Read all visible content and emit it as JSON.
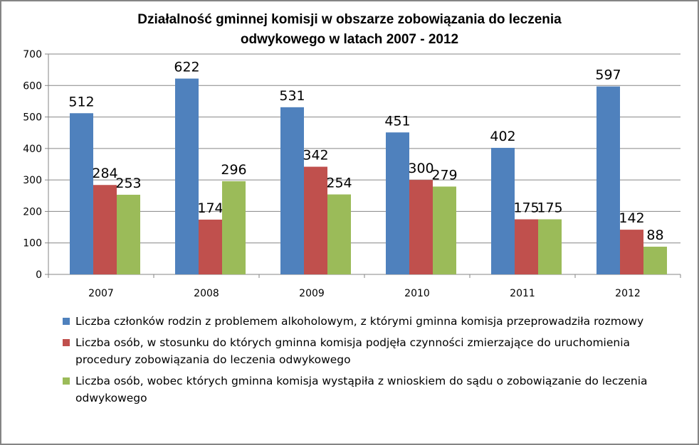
{
  "chart_data": {
    "type": "bar",
    "title_lines": [
      "Działalność gminnej komisji w obszarze zobowiązania do leczenia",
      "odwykowego w latach 2007 - 2012"
    ],
    "categories": [
      "2007",
      "2008",
      "2009",
      "2010",
      "2011",
      "2012"
    ],
    "ylim": [
      0,
      700
    ],
    "yticks": [
      0,
      100,
      200,
      300,
      400,
      500,
      600,
      700
    ],
    "grid": true,
    "legend_position": "bottom",
    "series": [
      {
        "name": "Liczba członków rodzin z problemem alkoholowym, z którymi gminna komisja przeprowadziła rozmowy",
        "color": "#4F81BD",
        "values": [
          512,
          622,
          531,
          451,
          402,
          597
        ]
      },
      {
        "name": "Liczba osób, w stosunku do których gminna komisja podjęła czynności zmierzające do uruchomienia procedury zobowiązania do leczenia odwykowego",
        "color": "#C0504D",
        "values": [
          284,
          174,
          342,
          300,
          175,
          142
        ]
      },
      {
        "name": "Liczba osób, wobec których gminna komisja wystąpiła z wnioskiem do sądu o zobowiązanie do leczenia odwykowego",
        "color": "#9BBB59",
        "values": [
          253,
          296,
          254,
          279,
          175,
          88
        ]
      }
    ]
  }
}
